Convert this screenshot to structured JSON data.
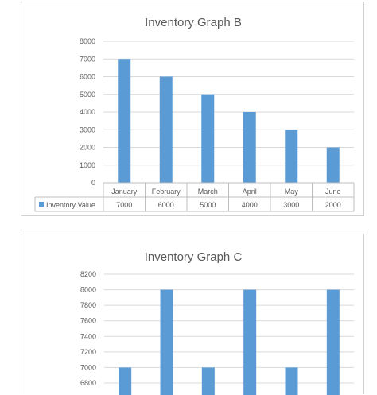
{
  "chart_data": [
    {
      "type": "bar",
      "title": "Inventory Graph B",
      "categories": [
        "January",
        "February",
        "March",
        "April",
        "May",
        "June"
      ],
      "series": [
        {
          "name": "Inventory Value",
          "values": [
            7000,
            6000,
            5000,
            4000,
            3000,
            2000
          ]
        }
      ],
      "ylim": [
        0,
        8000
      ],
      "yticks": [
        "8000",
        "7000",
        "6000",
        "5000",
        "4000",
        "3000",
        "2000",
        "1000",
        "0"
      ],
      "data_table": true,
      "grid": true,
      "bar_color": "#5b9bd5"
    },
    {
      "type": "bar",
      "title": "Inventory Graph C",
      "values": [
        7000,
        8000,
        7000,
        8000,
        7000,
        8000
      ],
      "ylim": [
        6800,
        8200
      ],
      "yticks": [
        "8200",
        "8000",
        "7800",
        "7600",
        "7400",
        "7200",
        "7000",
        "6800"
      ],
      "grid": true,
      "bar_color": "#5b9bd5"
    }
  ]
}
